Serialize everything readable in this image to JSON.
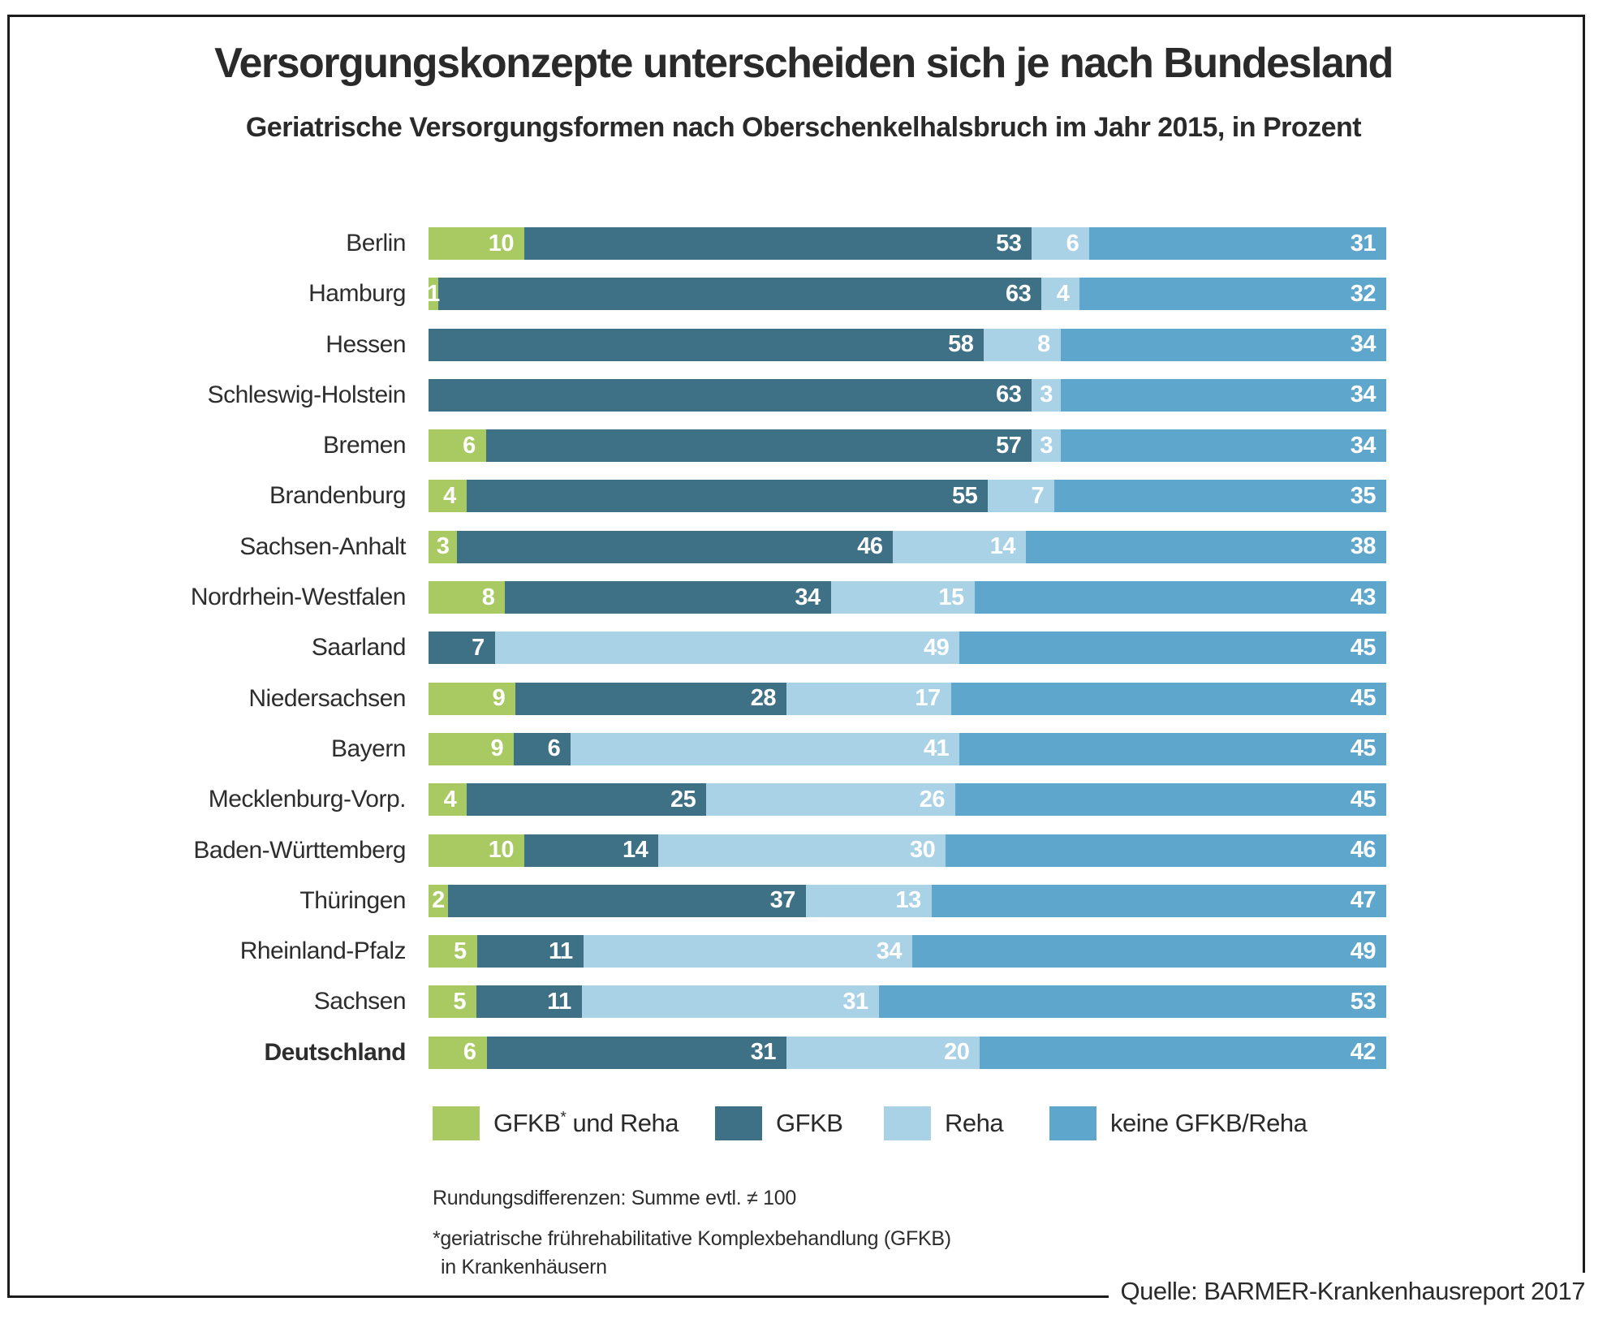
{
  "header": {
    "title": "Versorgungskonzepte unterscheiden sich je nach Bundesland",
    "subtitle": "Geriatrische Versorgungsformen nach Oberschenkelhalsbruch im Jahr 2015, in Prozent"
  },
  "colors": {
    "green": "#a9c963",
    "teal": "#3e7086",
    "light_blue": "#a9d2e7",
    "blue": "#5fa6cc",
    "value_text": "#ffffff",
    "text": "#2a2a2a",
    "frame_border": "#1c1c1c"
  },
  "legend": {
    "items": [
      {
        "label": "GFKB* und Reha",
        "color_key": "green"
      },
      {
        "label": "GFKB",
        "color_key": "teal"
      },
      {
        "label": "Reha",
        "color_key": "light_blue"
      },
      {
        "label": "keine GFKB/Reha",
        "color_key": "blue"
      }
    ]
  },
  "chart_data": {
    "type": "bar",
    "orientation": "horizontal",
    "stacked": true,
    "title": "Versorgungskonzepte unterscheiden sich je nach Bundesland",
    "subtitle": "Geriatrische Versorgungsformen nach Oberschenkelhalsbruch im Jahr 2015, in Prozent",
    "value_unit": "percent",
    "xlim": [
      0,
      100
    ],
    "grid": false,
    "legend_position": "bottom",
    "series": [
      "GFKB und Reha",
      "GFKB",
      "Reha",
      "keine GFKB/Reha"
    ],
    "rows": [
      {
        "name": "Berlin",
        "values": [
          10,
          53,
          6,
          31
        ]
      },
      {
        "name": "Hamburg",
        "values": [
          1,
          63,
          4,
          32
        ]
      },
      {
        "name": "Hessen",
        "values": [
          0,
          58,
          8,
          34
        ]
      },
      {
        "name": "Schleswig-Holstein",
        "values": [
          0,
          63,
          3,
          34
        ]
      },
      {
        "name": "Bremen",
        "values": [
          6,
          57,
          3,
          34
        ]
      },
      {
        "name": "Brandenburg",
        "values": [
          4,
          55,
          7,
          35
        ]
      },
      {
        "name": "Sachsen-Anhalt",
        "values": [
          3,
          46,
          14,
          38
        ]
      },
      {
        "name": "Nordrhein-Westfalen",
        "values": [
          8,
          34,
          15,
          43
        ]
      },
      {
        "name": "Saarland",
        "values": [
          0,
          7,
          49,
          45
        ]
      },
      {
        "name": "Niedersachsen",
        "values": [
          9,
          28,
          17,
          45
        ]
      },
      {
        "name": "Bayern",
        "values": [
          9,
          6,
          41,
          45
        ]
      },
      {
        "name": "Mecklenburg-Vorp.",
        "values": [
          4,
          25,
          26,
          45
        ]
      },
      {
        "name": "Baden-Württemberg",
        "values": [
          10,
          14,
          30,
          46
        ]
      },
      {
        "name": "Thüringen",
        "values": [
          2,
          37,
          13,
          47
        ]
      },
      {
        "name": "Rheinland-Pfalz",
        "values": [
          5,
          11,
          34,
          49
        ]
      },
      {
        "name": "Sachsen",
        "values": [
          5,
          11,
          31,
          53
        ]
      },
      {
        "name": "Deutschland",
        "values": [
          6,
          31,
          20,
          42
        ],
        "bold": true
      }
    ]
  },
  "footnotes": {
    "rounding": "Rundungsdifferenzen: Summe evtl. ≠ 100",
    "gfkb_line1": "*geriatrische frührehabilitative Komplexbehandlung (GFKB)",
    "gfkb_line2": "in Krankenhäusern"
  },
  "source": "Quelle: BARMER-Krankenhausreport 2017"
}
